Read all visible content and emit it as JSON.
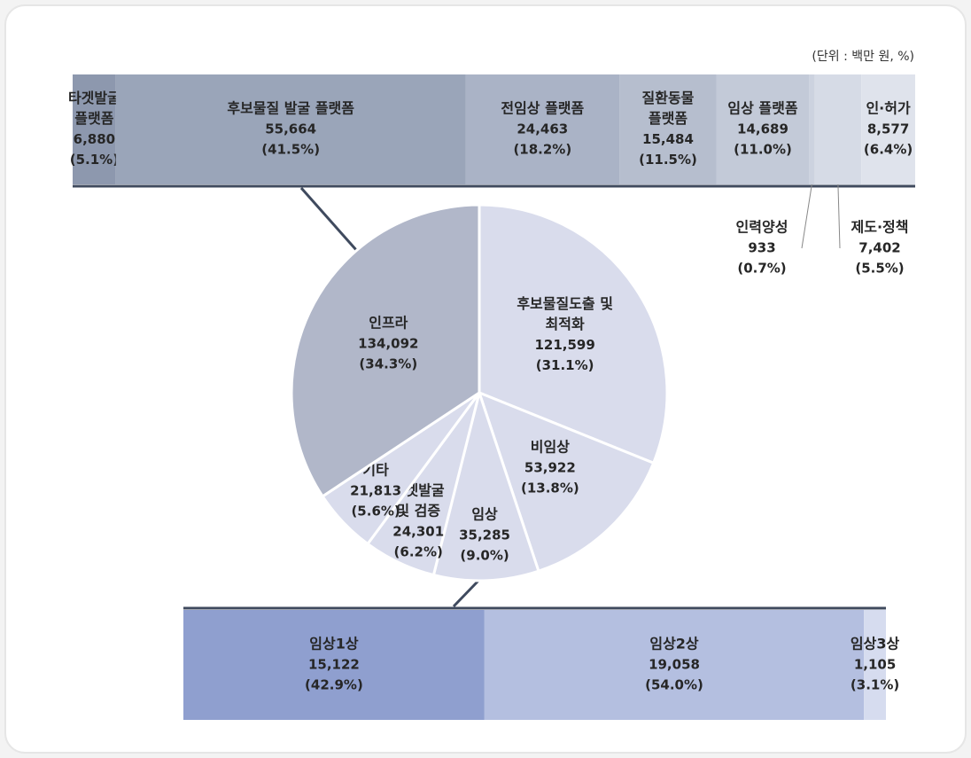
{
  "unit_note": "(단위 : 백만 원, %)",
  "chart_data": [
    {
      "type": "pie",
      "categories": [
        [
          "후보물질도출 및",
          "최적화"
        ],
        [
          "비임상"
        ],
        [
          "임상"
        ],
        [
          "타겟발굴",
          "및 검증"
        ],
        [
          "기타"
        ],
        [
          "인프라"
        ]
      ],
      "values": [
        121599,
        53922,
        35285,
        24301,
        21813,
        134092
      ],
      "value_labels": [
        "121,599",
        "53,922",
        "35,285",
        "24,301",
        "21,813",
        "134,092"
      ],
      "shares": [
        31.1,
        13.8,
        9.0,
        6.2,
        5.6,
        34.3
      ],
      "share_labels": [
        "(31.1%)",
        "(13.8%)",
        "(9.0%)",
        "(6.2%)",
        "(5.6%)",
        "(34.3%)"
      ],
      "colors": [
        "#d9dcec",
        "#d9dcec",
        "#d9dcec",
        "#d9dcec",
        "#d9dcec",
        "#b1b7c9"
      ]
    },
    {
      "type": "stacked-bar",
      "categories": [
        [
          "타겟발굴",
          "플랫폼"
        ],
        [
          "후보물질 발굴 플랫폼"
        ],
        [
          "전임상 플랫폼"
        ],
        [
          "질환동물",
          "플랫폼"
        ],
        [
          "임상 플랫폼"
        ],
        [
          "인력양성"
        ],
        [
          "제도·정책"
        ],
        [
          "인·허가"
        ]
      ],
      "values": [
        6880,
        55664,
        24463,
        15484,
        14689,
        933,
        7402,
        8577
      ],
      "value_labels": [
        "6,880",
        "55,664",
        "24,463",
        "15,484",
        "14,689",
        "933",
        "7,402",
        "8,577"
      ],
      "shares": [
        5.1,
        41.5,
        18.2,
        11.5,
        11.0,
        0.7,
        5.5,
        6.4
      ],
      "share_labels": [
        "(5.1%)",
        "(41.5%)",
        "(18.2%)",
        "(11.5%)",
        "(11.0%)",
        "(0.7%)",
        "(5.5%)",
        "(6.4%)"
      ],
      "colors": [
        "#8d98ae",
        "#9aa5b9",
        "#aab3c6",
        "#b6bece",
        "#c3cad8",
        "#ccd2df",
        "#d6dbe6",
        "#dfe3ec"
      ]
    },
    {
      "type": "stacked-bar",
      "categories": [
        [
          "임상1상"
        ],
        [
          "임상2상"
        ],
        [
          "임상3상"
        ]
      ],
      "values": [
        15122,
        19058,
        1105
      ],
      "value_labels": [
        "15,122",
        "19,058",
        "1,105"
      ],
      "shares": [
        42.9,
        54.0,
        3.1
      ],
      "share_labels": [
        "(42.9%)",
        "(54.0%)",
        "(3.1%)"
      ],
      "colors": [
        "#8f9fcf",
        "#b4bfe0",
        "#d6dcef"
      ]
    }
  ]
}
